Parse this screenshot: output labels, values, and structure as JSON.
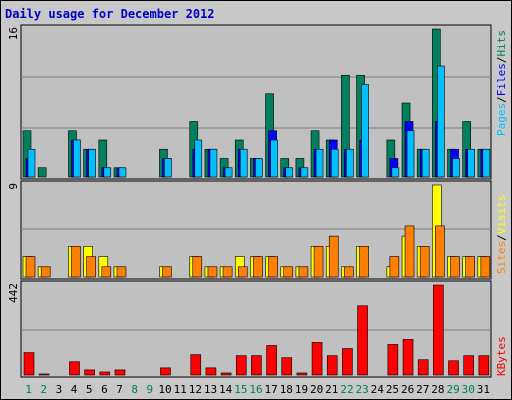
{
  "title": "Daily usage for December 2012",
  "colors": {
    "hits": "#00805c",
    "files": "#0000ff",
    "pages": "#00c0ff",
    "visits": "#ffff00",
    "sites": "#ff8000",
    "kbytes": "#ff0000",
    "weekday": "#000000",
    "weekend": "#00805c",
    "panel": "#c0c0c0"
  },
  "right_labels": {
    "top": [
      {
        "text": "Pages",
        "color": "#00c0ff"
      },
      {
        "text": "/",
        "color": "#000000"
      },
      {
        "text": "Files",
        "color": "#0000ff"
      },
      {
        "text": "/",
        "color": "#000000"
      },
      {
        "text": "Hits",
        "color": "#00805c"
      }
    ],
    "middle": [
      {
        "text": "Sites",
        "color": "#ff8000"
      },
      {
        "text": "/",
        "color": "#000000"
      },
      {
        "text": "Visits",
        "color": "#ffff00"
      }
    ],
    "bottom": [
      {
        "text": "KBytes",
        "color": "#ff0000"
      }
    ]
  },
  "chart_data": {
    "type": "bar",
    "title": "Daily usage for December 2012",
    "categories": [
      "1",
      "2",
      "3",
      "4",
      "5",
      "6",
      "7",
      "8",
      "9",
      "10",
      "11",
      "12",
      "13",
      "14",
      "15",
      "16",
      "17",
      "18",
      "19",
      "20",
      "21",
      "22",
      "23",
      "24",
      "25",
      "26",
      "27",
      "28",
      "29",
      "30",
      "31"
    ],
    "weekend_days": [
      "1",
      "2",
      "8",
      "9",
      "15",
      "16",
      "22",
      "23",
      "29",
      "30"
    ],
    "panels": [
      {
        "id": "hits-files-pages",
        "ymax_label": "16",
        "ymax": 16,
        "series": [
          {
            "name": "Hits",
            "values": [
              5,
              1,
              0,
              5,
              3,
              4,
              1,
              0,
              0,
              3,
              0,
              6,
              3,
              2,
              4,
              2,
              9,
              2,
              2,
              5,
              4,
              11,
              11,
              0,
              4,
              8,
              3,
              16,
              3,
              6,
              3
            ]
          },
          {
            "name": "Files",
            "values": [
              2,
              0,
              0,
              4,
              3,
              1,
              1,
              0,
              0,
              2,
              0,
              3,
              3,
              1,
              3,
              2,
              5,
              1,
              1,
              3,
              4,
              3,
              4,
              0,
              2,
              6,
              3,
              6,
              3,
              3,
              3
            ]
          },
          {
            "name": "Pages",
            "values": [
              3,
              0,
              0,
              4,
              3,
              1,
              1,
              0,
              0,
              2,
              0,
              4,
              3,
              1,
              3,
              2,
              4,
              1,
              1,
              3,
              3,
              3,
              10,
              0,
              1,
              5,
              3,
              12,
              2,
              3,
              3
            ]
          }
        ]
      },
      {
        "id": "visits-sites",
        "ymax_label": "9",
        "ymax": 9,
        "series": [
          {
            "name": "Visits",
            "values": [
              2,
              1,
              0,
              3,
              3,
              2,
              1,
              0,
              0,
              1,
              0,
              2,
              1,
              1,
              2,
              2,
              2,
              1,
              1,
              3,
              3,
              1,
              3,
              0,
              1,
              4,
              3,
              9,
              2,
              2,
              2
            ]
          },
          {
            "name": "Sites",
            "values": [
              2,
              1,
              0,
              3,
              2,
              1,
              1,
              0,
              0,
              1,
              0,
              2,
              1,
              1,
              1,
              2,
              2,
              1,
              1,
              3,
              4,
              1,
              3,
              0,
              2,
              5,
              3,
              5,
              2,
              2,
              2
            ]
          }
        ]
      },
      {
        "id": "kbytes",
        "ymax_label": "442",
        "ymax": 442,
        "series": [
          {
            "name": "KBytes",
            "values": [
              110,
              5,
              0,
              65,
              25,
              15,
              25,
              0,
              0,
              35,
              0,
              100,
              35,
              10,
              95,
              95,
              145,
              85,
              10,
              160,
              95,
              130,
              340,
              0,
              150,
              175,
              75,
              442,
              70,
              95,
              95
            ]
          }
        ]
      }
    ]
  }
}
